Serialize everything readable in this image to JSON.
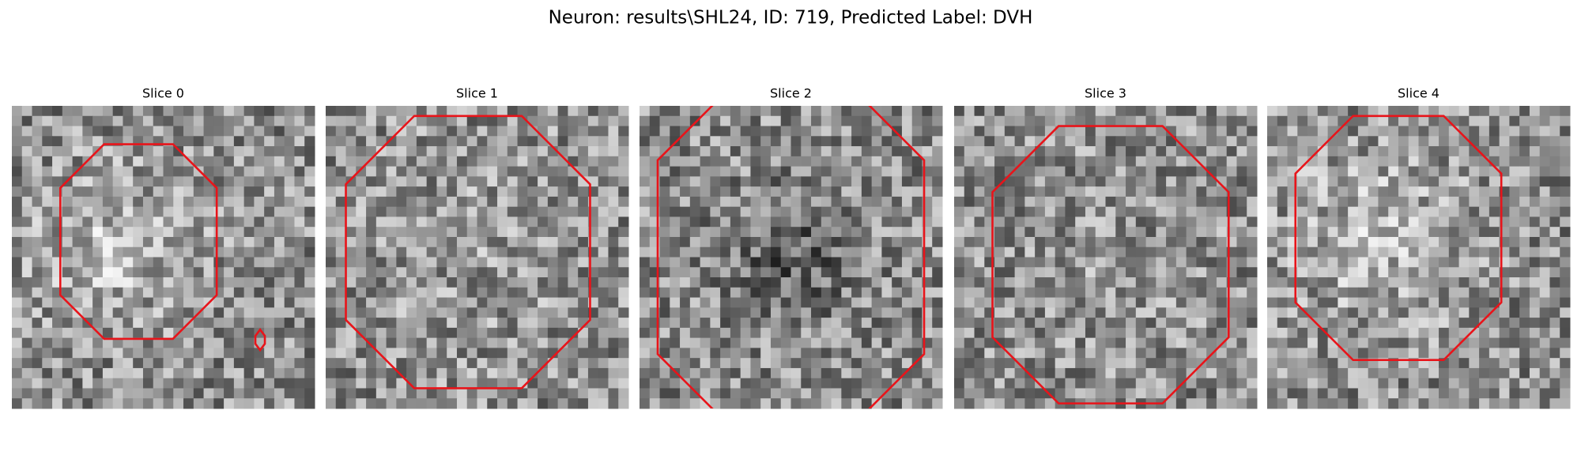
{
  "title": "Neuron: results\\SHL24, ID: 719, Predicted Label: DVH",
  "panels": [
    {
      "title": "Slice 0"
    },
    {
      "title": "Slice 1"
    },
    {
      "title": "Slice 2"
    },
    {
      "title": "Slice 3"
    },
    {
      "title": "Slice 4"
    }
  ]
}
